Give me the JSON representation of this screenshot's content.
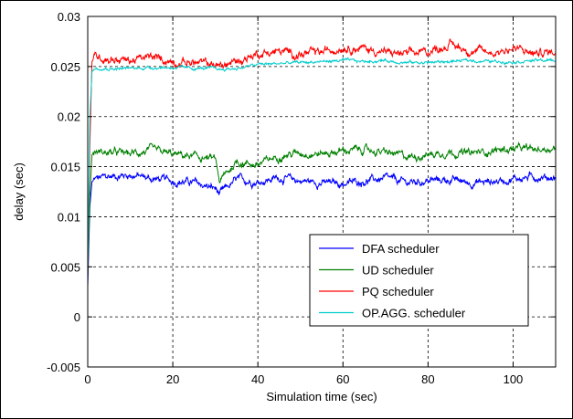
{
  "chart_data": {
    "type": "line",
    "title": "",
    "xlabel": "Simulation time (sec)",
    "ylabel": "delay (sec)",
    "xlim": [
      0,
      110
    ],
    "ylim": [
      -0.005,
      0.03
    ],
    "grid": true,
    "legend_position": "bottom-right",
    "x_ticks": [
      0,
      20,
      40,
      60,
      80,
      100
    ],
    "x_tick_labels": [
      "0",
      "20",
      "40",
      "60",
      "80",
      "100"
    ],
    "y_ticks": [
      -0.005,
      0,
      0.005,
      0.01,
      0.015,
      0.02,
      0.025,
      0.03
    ],
    "y_tick_labels": [
      "-0.005",
      "0",
      "0.005",
      "0.01",
      "0.015",
      "0.02",
      "0.025",
      "0.03"
    ],
    "x": [
      0,
      0.5,
      1,
      2,
      5,
      10,
      15,
      20,
      25,
      30,
      31,
      35,
      40,
      45,
      50,
      55,
      60,
      65,
      70,
      75,
      80,
      85,
      90,
      95,
      100,
      105,
      110
    ],
    "series": [
      {
        "name": "DFA scheduler",
        "color": "#0000ff",
        "values": [
          0.003,
          0.011,
          0.0135,
          0.0138,
          0.014,
          0.0142,
          0.0138,
          0.0136,
          0.0134,
          0.0128,
          0.0122,
          0.0137,
          0.0135,
          0.0139,
          0.0136,
          0.0134,
          0.0133,
          0.0136,
          0.0138,
          0.0134,
          0.0136,
          0.0137,
          0.0134,
          0.0135,
          0.0138,
          0.014,
          0.0139
        ]
      },
      {
        "name": "UD scheduler",
        "color": "#008000",
        "values": [
          0.004,
          0.012,
          0.0162,
          0.0165,
          0.0164,
          0.0163,
          0.0166,
          0.0162,
          0.016,
          0.0157,
          0.0135,
          0.0155,
          0.0152,
          0.0161,
          0.0164,
          0.0163,
          0.0166,
          0.0167,
          0.0164,
          0.016,
          0.0162,
          0.0165,
          0.0163,
          0.0166,
          0.0168,
          0.0167,
          0.0169
        ]
      },
      {
        "name": "PQ scheduler",
        "color": "#ff0000",
        "values": [
          0.004,
          0.017,
          0.0255,
          0.026,
          0.0258,
          0.0256,
          0.0259,
          0.0255,
          0.0254,
          0.0252,
          0.025,
          0.0255,
          0.0263,
          0.0265,
          0.0262,
          0.0264,
          0.027,
          0.0268,
          0.0264,
          0.0262,
          0.0265,
          0.0272,
          0.0266,
          0.0264,
          0.0268,
          0.0263,
          0.0265
        ]
      },
      {
        "name": "OP.AGG. scheduler",
        "color": "#00cccc",
        "values": [
          0.004,
          0.02,
          0.0245,
          0.0249,
          0.0248,
          0.0248,
          0.0249,
          0.0249,
          0.0248,
          0.0248,
          0.0247,
          0.0248,
          0.0252,
          0.0253,
          0.0254,
          0.0255,
          0.0256,
          0.0255,
          0.0256,
          0.0254,
          0.0254,
          0.0255,
          0.0256,
          0.0255,
          0.0255,
          0.0256,
          0.0256
        ]
      }
    ]
  }
}
